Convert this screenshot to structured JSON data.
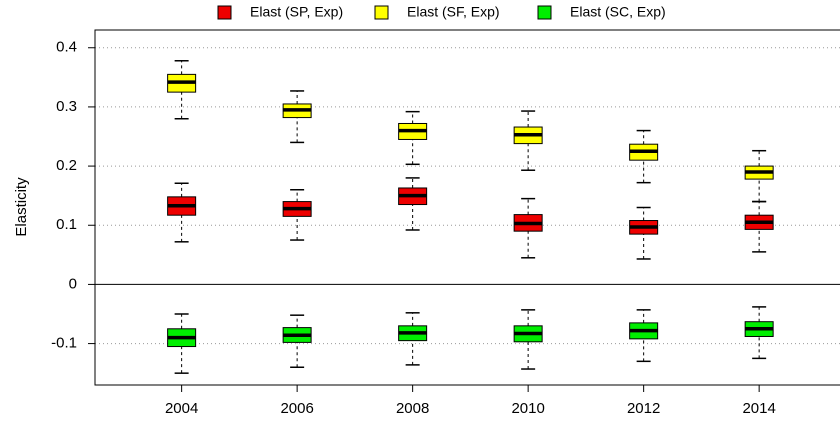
{
  "chart_data": {
    "type": "box",
    "ylabel": "Elasticity",
    "x": [
      2004,
      2006,
      2008,
      2010,
      2012,
      2014
    ],
    "xlim": [
      2002.5,
      2015.4
    ],
    "xticks": [
      2004,
      2006,
      2008,
      2010,
      2012,
      2014
    ],
    "ylim": [
      -0.17,
      0.43
    ],
    "yticks": [
      -0.1,
      0,
      0.1,
      0.2,
      0.3,
      0.4
    ],
    "grid": true,
    "legend": "top",
    "series": [
      {
        "name": "Elast (SP, Exp)",
        "color": "#ee0000",
        "low": [
          0.072,
          0.075,
          0.092,
          0.045,
          0.043,
          0.055
        ],
        "q1": [
          0.117,
          0.115,
          0.135,
          0.09,
          0.085,
          0.093
        ],
        "median": [
          0.133,
          0.128,
          0.15,
          0.103,
          0.097,
          0.105
        ],
        "q3": [
          0.148,
          0.14,
          0.163,
          0.118,
          0.108,
          0.117
        ],
        "high": [
          0.171,
          0.16,
          0.18,
          0.145,
          0.13,
          0.14
        ]
      },
      {
        "name": "Elast (SF, Exp)",
        "color": "#ffff00",
        "low": [
          0.28,
          0.24,
          0.203,
          0.193,
          0.172,
          0.14
        ],
        "q1": [
          0.325,
          0.282,
          0.245,
          0.238,
          0.21,
          0.178
        ],
        "median": [
          0.342,
          0.295,
          0.26,
          0.253,
          0.225,
          0.19
        ],
        "q3": [
          0.355,
          0.305,
          0.272,
          0.266,
          0.237,
          0.2
        ],
        "high": [
          0.378,
          0.327,
          0.292,
          0.293,
          0.26,
          0.226
        ]
      },
      {
        "name": "Elast (SC, Exp)",
        "color": "#00ee00",
        "low": [
          -0.15,
          -0.14,
          -0.136,
          -0.143,
          -0.13,
          -0.125
        ],
        "q1": [
          -0.105,
          -0.098,
          -0.095,
          -0.097,
          -0.092,
          -0.088
        ],
        "median": [
          -0.09,
          -0.086,
          -0.082,
          -0.083,
          -0.078,
          -0.075
        ],
        "q3": [
          -0.075,
          -0.073,
          -0.07,
          -0.07,
          -0.065,
          -0.063
        ],
        "high": [
          -0.05,
          -0.052,
          -0.048,
          -0.043,
          -0.043,
          -0.038
        ]
      }
    ]
  }
}
